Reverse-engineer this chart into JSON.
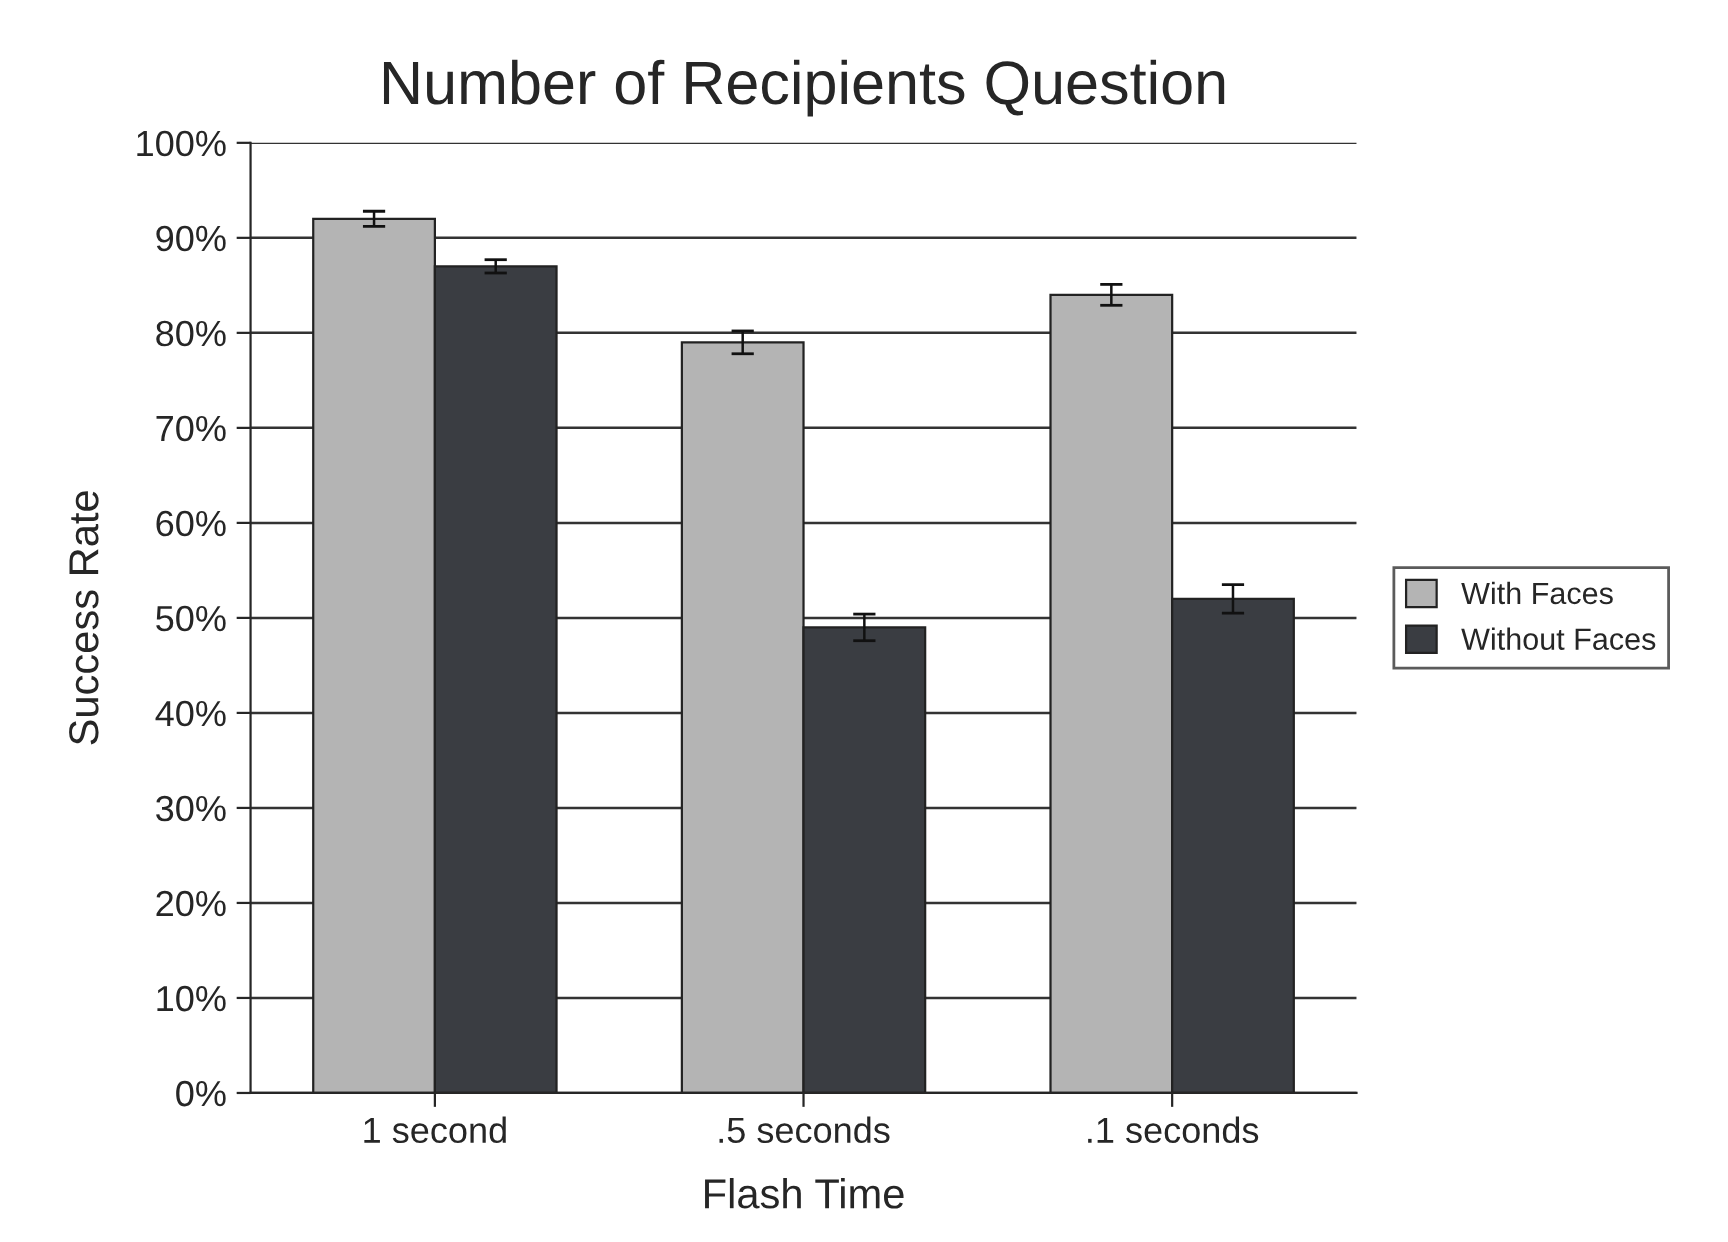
{
  "chart_data": {
    "type": "bar",
    "title": "Number of Recipients Question",
    "xlabel": "Flash Time",
    "ylabel": "Success Rate",
    "categories": [
      "1 second",
      ".5 seconds",
      ".1 seconds"
    ],
    "series": [
      {
        "name": "With Faces",
        "color": "#b4b4b4",
        "values": [
          92,
          79,
          84
        ],
        "errors": [
          0.8,
          1.2,
          1.1
        ]
      },
      {
        "name": "Without Faces",
        "color": "#3a3d42",
        "values": [
          87,
          49,
          52
        ],
        "errors": [
          0.7,
          1.4,
          1.5
        ]
      }
    ],
    "ylim": [
      0,
      100
    ],
    "yticks": [
      {
        "value": 0,
        "label": "0%"
      },
      {
        "value": 10,
        "label": "10%"
      },
      {
        "value": 20,
        "label": "20%"
      },
      {
        "value": 30,
        "label": "30%"
      },
      {
        "value": 40,
        "label": "40%"
      },
      {
        "value": 50,
        "label": "50%"
      },
      {
        "value": 60,
        "label": "60%"
      },
      {
        "value": 70,
        "label": "70%"
      },
      {
        "value": 80,
        "label": "80%"
      },
      {
        "value": 90,
        "label": "90%"
      },
      {
        "value": 100,
        "label": "100%"
      }
    ],
    "grid": "y",
    "legend": "right"
  }
}
